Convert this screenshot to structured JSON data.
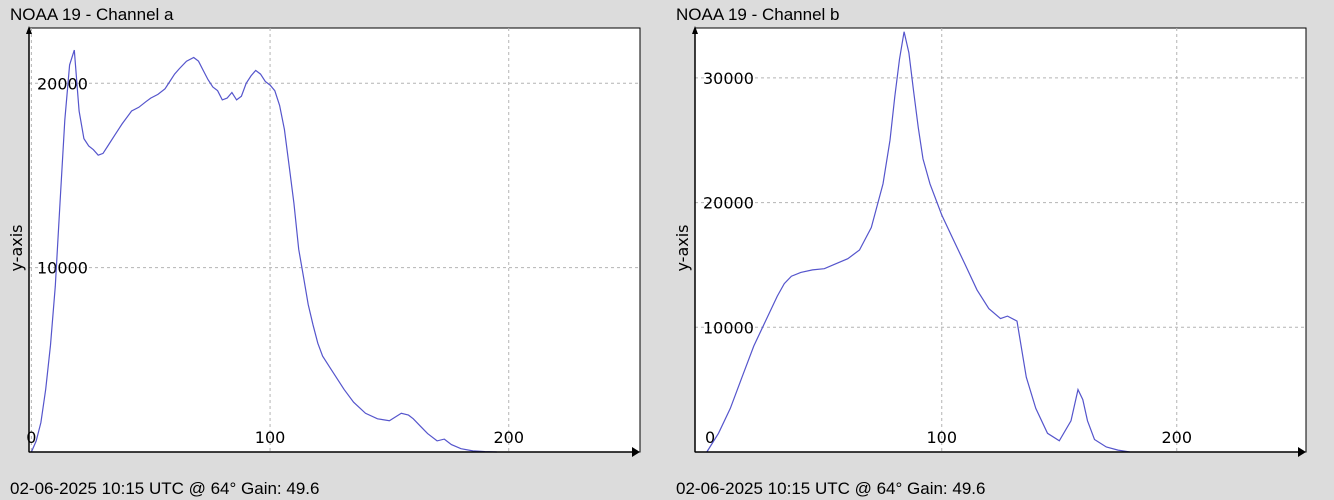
{
  "chart_data": [
    {
      "type": "line",
      "title": "NOAA 19 - Channel a",
      "footer": "02-06-2025 10:15 UTC @ 64° Gain: 49.6",
      "ylabel": "y-axis",
      "xlabel": "",
      "xlim": [
        -1,
        255
      ],
      "ylim": [
        0,
        23000
      ],
      "xticks": [
        0,
        100,
        200
      ],
      "yticks": [
        10000,
        20000
      ],
      "grid": true,
      "color": "#5555cc",
      "series": [
        {
          "x": [
            0,
            2,
            4,
            6,
            8,
            10,
            12,
            14,
            16,
            18,
            20,
            22,
            24,
            26,
            28,
            30,
            32,
            35,
            38,
            42,
            45,
            48,
            50,
            53,
            56,
            58,
            60,
            62,
            65,
            68,
            70,
            72,
            74,
            76,
            78,
            80,
            82,
            84,
            86,
            88,
            90,
            92,
            94,
            96,
            98,
            100,
            102,
            104,
            106,
            108,
            110,
            112,
            114,
            116,
            118,
            120,
            122,
            125,
            128,
            131,
            135,
            140,
            145,
            150,
            155,
            158,
            160,
            163,
            166,
            170,
            173,
            176,
            180,
            185,
            190,
            195
          ],
          "y": [
            0,
            600,
            1600,
            3400,
            5800,
            9000,
            13500,
            18000,
            21000,
            21800,
            18500,
            17000,
            16600,
            16400,
            16100,
            16200,
            16600,
            17200,
            17800,
            18500,
            18700,
            19000,
            19200,
            19400,
            19700,
            20100,
            20500,
            20800,
            21200,
            21400,
            21200,
            20700,
            20200,
            19800,
            19600,
            19100,
            19200,
            19500,
            19100,
            19300,
            20000,
            20400,
            20700,
            20500,
            20100,
            19900,
            19600,
            18800,
            17500,
            15500,
            13500,
            11000,
            9500,
            8000,
            6900,
            5900,
            5200,
            4600,
            4000,
            3400,
            2700,
            2100,
            1800,
            1700,
            2100,
            2000,
            1800,
            1400,
            1000,
            600,
            700,
            400,
            180,
            60,
            20,
            0
          ]
        }
      ]
    },
    {
      "type": "line",
      "title": "NOAA 19 - Channel b",
      "footer": "02-06-2025 10:15 UTC @ 64° Gain: 49.6",
      "ylabel": "y-axis",
      "xlabel": "",
      "xlim": [
        -5,
        255
      ],
      "ylim": [
        0,
        34000
      ],
      "xticks": [
        100,
        200
      ],
      "yticks": [
        10000,
        20000,
        30000
      ],
      "grid": true,
      "color": "#5555cc",
      "series": [
        {
          "x": [
            0,
            5,
            10,
            15,
            20,
            25,
            30,
            33,
            36,
            40,
            45,
            50,
            55,
            60,
            65,
            70,
            75,
            78,
            80,
            82,
            84,
            86,
            88,
            90,
            92,
            95,
            100,
            105,
            110,
            115,
            120,
            125,
            128,
            132,
            136,
            140,
            145,
            150,
            155,
            158,
            160,
            162,
            165,
            170,
            175,
            180
          ],
          "y": [
            0,
            1500,
            3500,
            6000,
            8500,
            10500,
            12500,
            13500,
            14100,
            14400,
            14600,
            14700,
            15100,
            15500,
            16200,
            18000,
            21500,
            25000,
            28500,
            31500,
            33700,
            32000,
            29000,
            26000,
            23500,
            21500,
            19000,
            17000,
            15000,
            13000,
            11500,
            10700,
            10900,
            10500,
            6000,
            3500,
            1500,
            900,
            2500,
            5000,
            4200,
            2500,
            1000,
            400,
            150,
            0
          ]
        }
      ]
    }
  ]
}
